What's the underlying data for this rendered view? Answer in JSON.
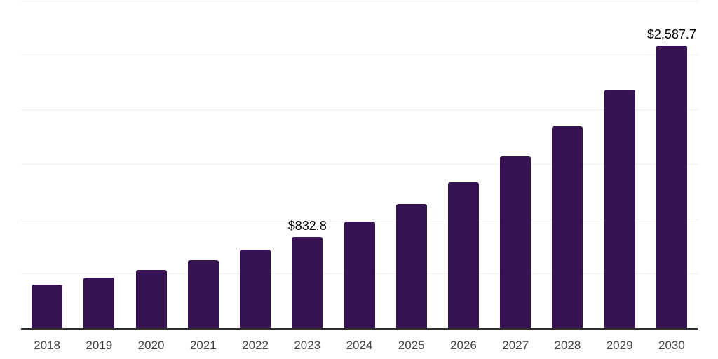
{
  "chart_data": {
    "type": "bar",
    "title": "",
    "xlabel": "",
    "ylabel": "",
    "categories": [
      "2018",
      "2019",
      "2020",
      "2021",
      "2022",
      "2023",
      "2024",
      "2025",
      "2026",
      "2027",
      "2028",
      "2029",
      "2030"
    ],
    "values": [
      395,
      461,
      531,
      621,
      717,
      832.8,
      973,
      1133,
      1332,
      1569,
      1850,
      2183,
      2587.7
    ],
    "bar_labels": [
      "",
      "",
      "",
      "",
      "",
      "$832.8",
      "",
      "",
      "",
      "",
      "",
      "",
      "$2,587.7"
    ],
    "ylim": [
      0,
      3000
    ],
    "gridline_step": 500,
    "grid": true,
    "legend": false,
    "colors": {
      "bar": "#371353",
      "axis_line": "#2e2e2e",
      "gridline": "#ededed",
      "bar_label_text": "#000000",
      "tick_label_text": "#424242",
      "background": "#ffffff"
    }
  }
}
